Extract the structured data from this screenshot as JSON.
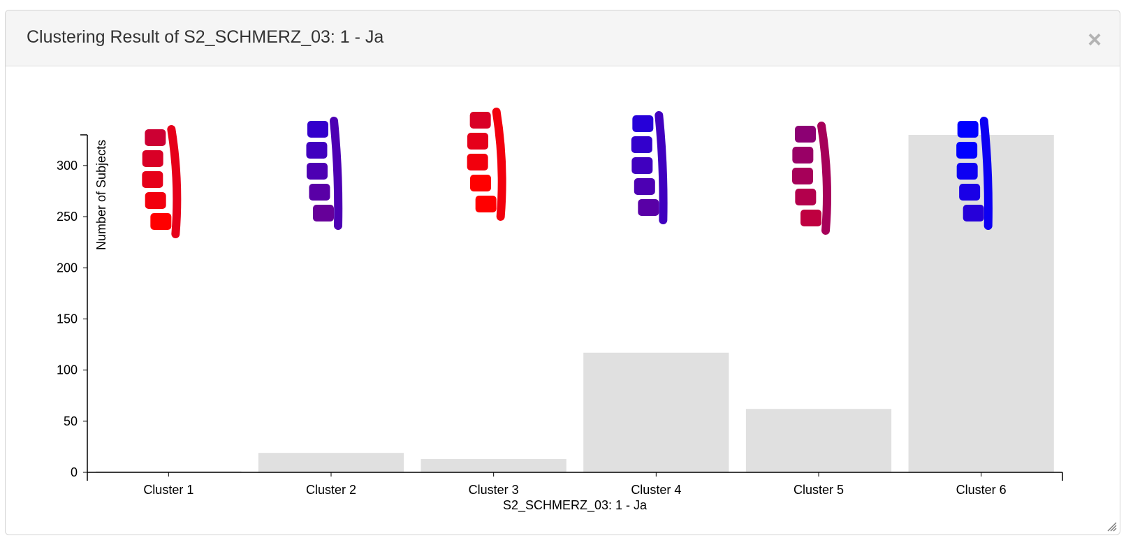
{
  "dialog": {
    "title": "Clustering Result of S2_SCHMERZ_03: 1 - Ja",
    "close_label": "×",
    "close_icon": "close-icon",
    "resize_icon": "resize-grip-icon"
  },
  "chart_data": {
    "type": "bar",
    "categories": [
      "Cluster 1",
      "Cluster 2",
      "Cluster 3",
      "Cluster 4",
      "Cluster 5",
      "Cluster 6"
    ],
    "values": [
      1,
      19,
      13,
      117,
      62,
      330
    ],
    "xlabel": "S2_SCHMERZ_03: 1 - Ja",
    "ylabel": "Number of Subjects",
    "ylim": [
      0,
      330
    ],
    "yticks": [
      0,
      50,
      100,
      150,
      200,
      250,
      300
    ],
    "bar_color": "#e0e0e0",
    "grid": false,
    "spine_icons": [
      "spine-shape-icon",
      "spine-shape-icon",
      "spine-shape-icon",
      "spine-shape-icon",
      "spine-shape-icon",
      "spine-shape-icon"
    ],
    "spine_red_fraction": [
      0.9,
      0.3,
      0.95,
      0.25,
      0.65,
      0.05
    ]
  }
}
